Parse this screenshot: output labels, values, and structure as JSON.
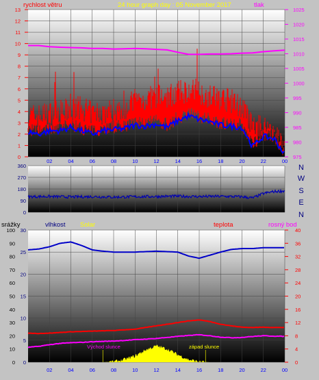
{
  "title": "24 hour graph day : 05 November 2017",
  "colors": {
    "wind": "#ff0000",
    "pressure": "#ff00ff",
    "avgwind": "#0000ff",
    "direction": "#0000b4",
    "humidity": "#0000c8",
    "temperature": "#ff0000",
    "dewpoint": "#ff00ff",
    "solar": "#ffff00",
    "rain": "#0000ff",
    "title": "#ffff00",
    "panel_top": "#ffffff",
    "panel_bottom": "#000000"
  },
  "chart_data": [
    {
      "type": "line",
      "name": "wind-pressure",
      "left_axis_label": "rychlost větru",
      "right_axis_label": "tlak",
      "x_ticks": [
        "02",
        "04",
        "06",
        "08",
        "10",
        "12",
        "14",
        "16",
        "18",
        "20",
        "22",
        "00"
      ],
      "y_ticks_left": [
        "0",
        "1",
        "2",
        "3",
        "4",
        "5",
        "6",
        "7",
        "8",
        "9",
        "10",
        "11",
        "12",
        "13"
      ],
      "y_ticks_right": [
        "975",
        "980",
        "985",
        "990",
        "995",
        "1000",
        "1005",
        "1010",
        "1015",
        "1020",
        "1025"
      ],
      "ylim_left": [
        0,
        13
      ],
      "ylim_right": [
        975,
        1025
      ],
      "x_hours": [
        0,
        1,
        2,
        3,
        4,
        5,
        6,
        7,
        8,
        9,
        10,
        11,
        12,
        13,
        14,
        15,
        16,
        17,
        18,
        19,
        20,
        21,
        22,
        23,
        24
      ],
      "series": [
        {
          "key": "gust",
          "values": [
            3.3,
            3.3,
            3.5,
            3.6,
            3.8,
            4.0,
            3.5,
            3.6,
            3.8,
            4.0,
            4.6,
            4.8,
            5.0,
            5.0,
            5.3,
            5.5,
            5.4,
            5.0,
            4.9,
            4.6,
            4.1,
            2.3,
            2.3,
            2.0,
            0.3
          ]
        },
        {
          "key": "avg",
          "values": [
            2.2,
            2.0,
            2.3,
            2.3,
            2.6,
            2.3,
            2.0,
            2.3,
            2.4,
            2.5,
            2.8,
            2.7,
            2.9,
            2.6,
            3.2,
            3.6,
            3.3,
            3.1,
            2.8,
            2.7,
            2.6,
            0.9,
            1.8,
            1.6,
            0.2
          ]
        },
        {
          "key": "pressure",
          "values": [
            1012.8,
            1012.8,
            1012.4,
            1012.2,
            1012.1,
            1012.0,
            1011.8,
            1011.8,
            1011.6,
            1011.7,
            1011.8,
            1011.7,
            1011.5,
            1011.3,
            1010.5,
            1009.8,
            1009.8,
            1009.9,
            1009.9,
            1010.0,
            1010.2,
            1010.3,
            1010.7,
            1011.0,
            1011.2
          ]
        }
      ]
    },
    {
      "type": "line",
      "name": "wind-direction",
      "y_ticks": [
        "0",
        "90",
        "180",
        "270",
        "360"
      ],
      "ylim": [
        0,
        360
      ],
      "directions": [
        "N",
        "W",
        "S",
        "E",
        "N"
      ],
      "x_hours": [
        0,
        2,
        4,
        6,
        8,
        10,
        12,
        14,
        16,
        18,
        20,
        21,
        22,
        23,
        24
      ],
      "values": [
        120,
        122,
        118,
        121,
        117,
        120,
        122,
        124,
        121,
        123,
        120,
        110,
        145,
        160,
        165
      ]
    },
    {
      "type": "line",
      "name": "humidity-temperature",
      "labels": {
        "rain": "srážky",
        "humidity": "vlhkost",
        "solar": "Solar",
        "temperature": "teplota",
        "dewpoint": "rosný bod"
      },
      "annotations": [
        "Východ slunce",
        "západ slunce"
      ],
      "x_ticks": [
        "02",
        "04",
        "06",
        "08",
        "10",
        "12",
        "14",
        "16",
        "18",
        "20",
        "22",
        "00"
      ],
      "y_ticks_rain": [
        "0",
        "5",
        "10",
        "15",
        "20",
        "25",
        "30",
        "35",
        "40",
        "45",
        "50",
        "55",
        "60",
        "65",
        "70",
        "75",
        "80",
        "85",
        "90",
        "95",
        "100"
      ],
      "y_ticks_humidity": [
        "0",
        "5",
        "10",
        "15",
        "20",
        "25",
        "30"
      ],
      "y_ticks_temp": [
        "0",
        "2",
        "4",
        "6",
        "8",
        "10",
        "12",
        "14",
        "16",
        "18",
        "20",
        "22",
        "24",
        "26",
        "28",
        "30",
        "32",
        "34",
        "36",
        "38",
        "40"
      ],
      "ylim_humidity": [
        0,
        30
      ],
      "ylim_temp": [
        0,
        40
      ],
      "x_hours": [
        0,
        1,
        2,
        3,
        4,
        5,
        6,
        7,
        8,
        9,
        10,
        11,
        12,
        13,
        14,
        15,
        16,
        17,
        18,
        19,
        20,
        21,
        22,
        23,
        24
      ],
      "series": [
        {
          "key": "humidity",
          "values": [
            25.5,
            25.7,
            26.2,
            27.0,
            27.3,
            26.5,
            25.5,
            25.2,
            25.0,
            25.0,
            25.0,
            25.1,
            25.2,
            25.1,
            25.0,
            24.1,
            23.6,
            24.3,
            25.0,
            25.6,
            25.8,
            25.8,
            26.0,
            26.0,
            26.0
          ]
        },
        {
          "key": "temperature",
          "values": [
            8.8,
            8.7,
            8.8,
            9.0,
            9.2,
            9.3,
            9.4,
            9.5,
            9.6,
            9.8,
            10.0,
            10.5,
            11.0,
            11.5,
            12.0,
            12.5,
            12.8,
            12.3,
            11.5,
            11.0,
            10.6,
            10.5,
            10.6,
            10.5,
            10.5
          ]
        },
        {
          "key": "dewpoint",
          "values": [
            4.5,
            4.8,
            5.3,
            5.7,
            5.9,
            6.0,
            6.2,
            6.3,
            6.4,
            6.6,
            6.8,
            7.0,
            7.2,
            7.5,
            7.8,
            8.1,
            8.3,
            8.0,
            7.6,
            7.4,
            7.5,
            7.8,
            8.0,
            7.9,
            7.8
          ]
        },
        {
          "key": "solar",
          "values": [
            0,
            0,
            0,
            0,
            0,
            0,
            0,
            0,
            0.1,
            0.6,
            1.4,
            2.8,
            3.7,
            3.0,
            1.7,
            0.6,
            0.1,
            0,
            0,
            0,
            0,
            0,
            0,
            0,
            0
          ]
        }
      ],
      "rain": 0
    }
  ]
}
